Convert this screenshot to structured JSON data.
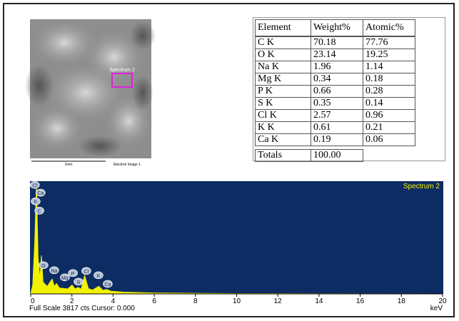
{
  "image": {
    "region_label": "Spectrum 2",
    "scale_label": "1mm",
    "caption": "Electron Image 1"
  },
  "table": {
    "header": [
      "Element",
      "Weight%",
      "Atomic%"
    ],
    "rows": [
      [
        "C K",
        "70.18",
        "77.76"
      ],
      [
        "O K",
        "23.14",
        "19.25"
      ],
      [
        "Na K",
        "1.96",
        "1.14"
      ],
      [
        "Mg K",
        "0.34",
        "0.18"
      ],
      [
        "P K",
        "0.66",
        "0.28"
      ],
      [
        "S K",
        "0.35",
        "0.14"
      ],
      [
        "Cl K",
        "2.57",
        "0.96"
      ],
      [
        "K K",
        "0.61",
        "0.21"
      ],
      [
        "Ca K",
        "0.19",
        "0.06"
      ]
    ],
    "totals": [
      "Totals",
      "100.00"
    ]
  },
  "chart_data": {
    "type": "area",
    "title": "Spectrum 2",
    "x_label": "keV",
    "footer": "Full Scale 3817 cts Cursor: 0.000",
    "color": "#f2f200",
    "background": "#0d2c63",
    "x": [
      0,
      0.1,
      0.2,
      0.28,
      0.36,
      0.45,
      0.52,
      0.6,
      0.8,
      1.04,
      1.15,
      1.25,
      1.4,
      1.8,
      2.01,
      2.15,
      2.31,
      2.45,
      2.62,
      2.8,
      3.0,
      3.31,
      3.5,
      3.69,
      3.9,
      4.5,
      6,
      10,
      20
    ],
    "values": [
      0,
      300,
      1800,
      3750,
      1200,
      500,
      1300,
      400,
      250,
      500,
      250,
      350,
      200,
      170,
      300,
      170,
      220,
      160,
      620,
      180,
      130,
      260,
      120,
      150,
      90,
      60,
      30,
      10,
      0
    ],
    "xlim": [
      0,
      20
    ],
    "ylim": [
      0,
      3817
    ],
    "xticks": [
      0,
      2,
      4,
      6,
      8,
      10,
      12,
      14,
      16,
      18,
      20
    ],
    "annotations": [
      {
        "text": "Cl",
        "x": 0.2,
        "y": 3690
      },
      {
        "text": "Ca",
        "x": 0.48,
        "y": 3426
      },
      {
        "text": "K",
        "x": 0.24,
        "y": 3135
      },
      {
        "text": "C",
        "x": 0.42,
        "y": 2819
      },
      {
        "text": "O",
        "x": 0.62,
        "y": 972
      },
      {
        "text": "Na",
        "x": 1.14,
        "y": 802
      },
      {
        "text": "Mg",
        "x": 1.66,
        "y": 559
      },
      {
        "text": "P",
        "x": 2.05,
        "y": 705
      },
      {
        "text": "S",
        "x": 2.32,
        "y": 413
      },
      {
        "text": "Cl",
        "x": 2.7,
        "y": 778
      },
      {
        "text": "K",
        "x": 3.29,
        "y": 632
      },
      {
        "text": "Ca",
        "x": 3.74,
        "y": 340
      }
    ]
  }
}
